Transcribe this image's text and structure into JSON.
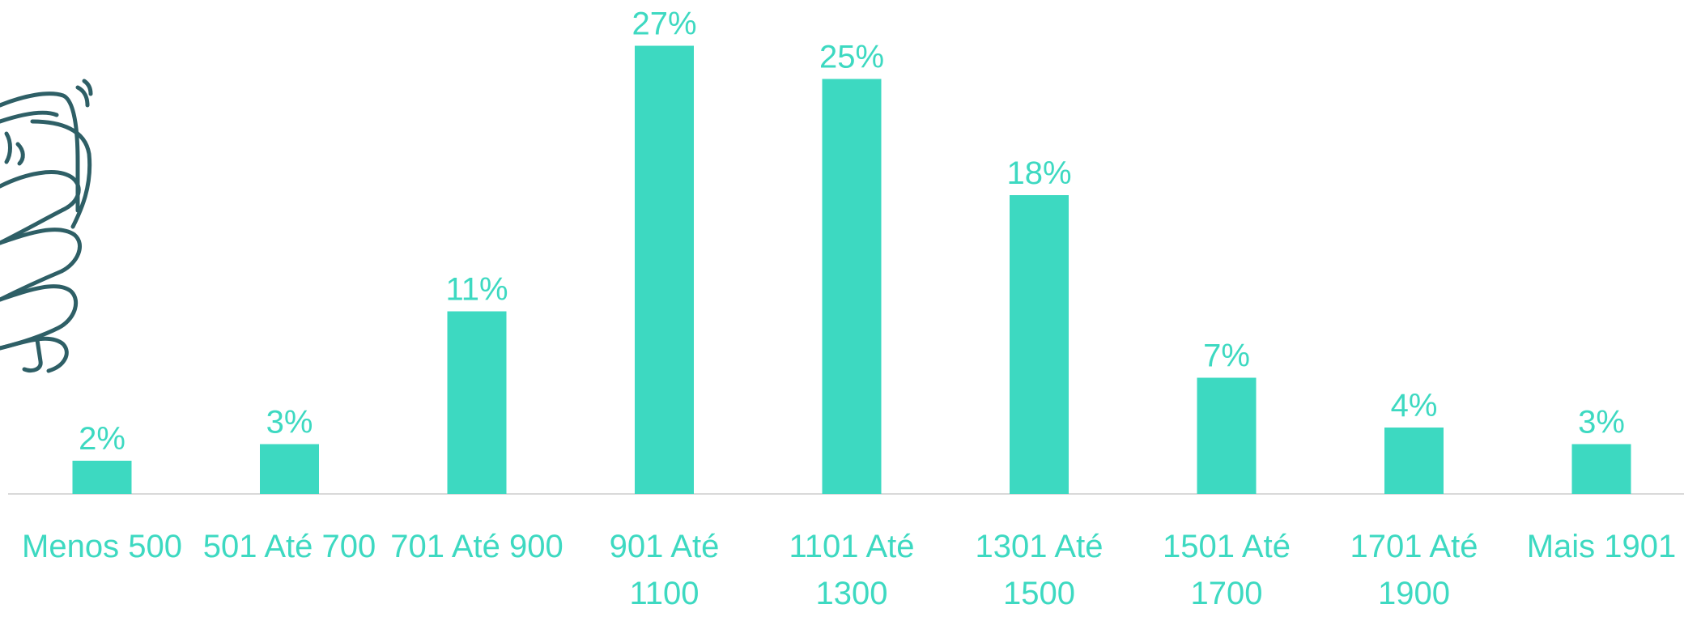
{
  "chart_data": {
    "type": "bar",
    "categories": [
      "Menos 500",
      "501 Até 700",
      "701 Até 900",
      "901 Até 1100",
      "1101 Até 1300",
      "1301 Até 1500",
      "1501 Até 1700",
      "1701 Até 1900",
      "Mais 1901"
    ],
    "values": [
      2,
      3,
      11,
      27,
      25,
      18,
      7,
      4,
      3
    ],
    "value_labels": [
      "2%",
      "3%",
      "11%",
      "27%",
      "25%",
      "18%",
      "7%",
      "4%",
      "3%"
    ],
    "color": "#3dd9c1",
    "ylim": [
      0,
      28
    ]
  }
}
